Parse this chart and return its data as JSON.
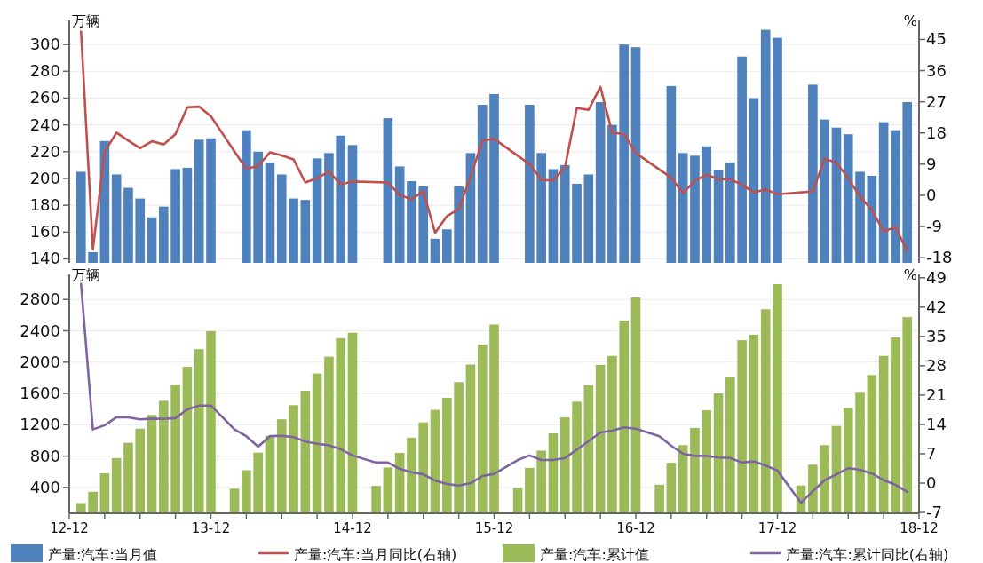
{
  "chart_data": [
    {
      "type": "bar",
      "ylabel": "万辆",
      "y2label": "%",
      "xlim": [
        "2012-12",
        "2018-12"
      ],
      "ylim": [
        137,
        318
      ],
      "yticks": [
        140,
        160,
        180,
        200,
        220,
        240,
        260,
        280,
        300
      ],
      "y2lim": [
        -19.5,
        50.5
      ],
      "y2ticks": [
        -18,
        -9,
        0,
        9,
        18,
        27,
        36,
        45
      ],
      "tick_labels": "y",
      "grid": "y",
      "legend": "bottom",
      "series": [
        {
          "name": "产量:汽车:当月值",
          "color": "#4f81bd",
          "x": [
            "2013-01",
            "2013-02",
            "2013-03",
            "2013-04",
            "2013-05",
            "2013-06",
            "2013-07",
            "2013-08",
            "2013-09",
            "2013-10",
            "2013-11",
            "2013-12",
            "2014-03",
            "2014-04",
            "2014-05",
            "2014-06",
            "2014-07",
            "2014-08",
            "2014-09",
            "2014-10",
            "2014-11",
            "2014-12",
            "2015-03",
            "2015-04",
            "2015-05",
            "2015-06",
            "2015-07",
            "2015-08",
            "2015-09",
            "2015-10",
            "2015-11",
            "2015-12",
            "2016-03",
            "2016-04",
            "2016-05",
            "2016-06",
            "2016-07",
            "2016-08",
            "2016-09",
            "2016-10",
            "2016-11",
            "2016-12",
            "2017-03",
            "2017-04",
            "2017-05",
            "2017-06",
            "2017-07",
            "2017-08",
            "2017-09",
            "2017-10",
            "2017-11",
            "2017-12",
            "2018-03",
            "2018-04",
            "2018-05",
            "2018-06",
            "2018-07",
            "2018-08",
            "2018-09",
            "2018-10",
            "2018-11"
          ],
          "values": [
            205,
            145,
            228,
            203,
            193,
            185,
            171,
            179,
            207,
            208,
            229,
            230,
            236,
            220,
            212,
            203,
            185,
            184,
            215,
            219,
            232,
            225,
            245,
            209,
            198,
            194,
            155,
            162,
            194,
            219,
            255,
            263,
            255,
            219,
            207,
            210,
            196,
            203,
            257,
            240,
            300,
            298,
            269,
            219,
            217,
            224,
            206,
            212,
            291,
            260,
            311,
            305,
            270,
            244,
            238,
            233,
            205,
            202,
            242,
            236,
            257
          ]
        },
        {
          "name": "产量:汽车:当月同比(右轴)",
          "type": "line",
          "axis": "y2",
          "color": "#c0504d",
          "x": [
            "2013-01",
            "2013-02",
            "2013-03",
            "2013-04",
            "2013-05",
            "2013-06",
            "2013-07",
            "2013-08",
            "2013-09",
            "2013-10",
            "2013-11",
            "2013-12",
            "2014-03",
            "2014-04",
            "2014-05",
            "2014-06",
            "2014-07",
            "2014-08",
            "2014-09",
            "2014-10",
            "2014-11",
            "2014-12",
            "2015-03",
            "2015-04",
            "2015-05",
            "2015-06",
            "2015-07",
            "2015-08",
            "2015-09",
            "2015-10",
            "2015-11",
            "2015-12",
            "2016-03",
            "2016-04",
            "2016-05",
            "2016-06",
            "2016-07",
            "2016-08",
            "2016-09",
            "2016-10",
            "2016-11",
            "2016-12",
            "2017-03",
            "2017-04",
            "2017-05",
            "2017-06",
            "2017-07",
            "2017-08",
            "2017-09",
            "2017-10",
            "2017-11",
            "2017-12",
            "2018-03",
            "2018-04",
            "2018-05",
            "2018-06",
            "2018-07",
            "2018-08",
            "2018-09",
            "2018-10",
            "2018-11"
          ],
          "values": [
            47.3,
            -15.6,
            12.6,
            18.1,
            15.8,
            13.6,
            15.6,
            14.7,
            17.7,
            25.4,
            25.6,
            22.8,
            7.6,
            8.5,
            12.4,
            11.5,
            10.4,
            3.7,
            4.9,
            6.9,
            3.1,
            4.0,
            3.7,
            0.1,
            -1.2,
            1.2,
            -10.8,
            -6.0,
            -4.0,
            5.3,
            15.8,
            16.3,
            9.0,
            4.4,
            4.3,
            8.1,
            25.2,
            24.7,
            31.3,
            18.1,
            17.7,
            12.2,
            5.1,
            0.6,
            4.2,
            6.0,
            4.6,
            4.6,
            3.1,
            0.8,
            1.7,
            0.3,
            1.1,
            10.6,
            9.4,
            4.9,
            -0.4,
            -4.2,
            -10.4,
            -9.2,
            -16.1
          ]
        }
      ]
    },
    {
      "type": "bar",
      "ylabel": "万辆",
      "y2label": "%",
      "xlim": [
        "2012-12",
        "2018-12"
      ],
      "xticks": [
        {
          "value": "2012-12",
          "label": "12-12"
        },
        {
          "value": "2013-03",
          "label": null
        },
        {
          "value": "2013-06",
          "label": null
        },
        {
          "value": "2013-09",
          "label": null
        },
        {
          "value": "2013-12",
          "label": "13-12"
        },
        {
          "value": "2014-03",
          "label": null
        },
        {
          "value": "2014-06",
          "label": null
        },
        {
          "value": "2014-09",
          "label": null
        },
        {
          "value": "2014-12",
          "label": "14-12"
        },
        {
          "value": "2015-03",
          "label": null
        },
        {
          "value": "2015-06",
          "label": null
        },
        {
          "value": "2015-09",
          "label": null
        },
        {
          "value": "2015-12",
          "label": "15-12"
        },
        {
          "value": "2016-03",
          "label": null
        },
        {
          "value": "2016-06",
          "label": null
        },
        {
          "value": "2016-09",
          "label": null
        },
        {
          "value": "2016-12",
          "label": "16-12"
        },
        {
          "value": "2017-03",
          "label": null
        },
        {
          "value": "2017-06",
          "label": null
        },
        {
          "value": "2017-09",
          "label": null
        },
        {
          "value": "2017-12",
          "label": "17-12"
        },
        {
          "value": "2018-03",
          "label": null
        },
        {
          "value": "2018-06",
          "label": null
        },
        {
          "value": "2018-09",
          "label": null
        },
        {
          "value": "2018-12",
          "label": "18-12"
        }
      ],
      "ylim": [
        70,
        3120
      ],
      "yticks": [
        400,
        800,
        1200,
        1600,
        2000,
        2400,
        2800
      ],
      "y2lim": [
        -7.2,
        49.8
      ],
      "y2ticks": [
        -7,
        0,
        7,
        14,
        21,
        28,
        35,
        42,
        49
      ],
      "grid": "y",
      "legend": "bottom",
      "series": [
        {
          "name": "产量:汽车:累计值",
          "color": "#9bbb59",
          "x": [
            "2013-01",
            "2013-02",
            "2013-03",
            "2013-04",
            "2013-05",
            "2013-06",
            "2013-07",
            "2013-08",
            "2013-09",
            "2013-10",
            "2013-11",
            "2013-12",
            "2014-02",
            "2014-03",
            "2014-04",
            "2014-05",
            "2014-06",
            "2014-07",
            "2014-08",
            "2014-09",
            "2014-10",
            "2014-11",
            "2014-12",
            "2015-02",
            "2015-03",
            "2015-04",
            "2015-05",
            "2015-06",
            "2015-07",
            "2015-08",
            "2015-09",
            "2015-10",
            "2015-11",
            "2015-12",
            "2016-02",
            "2016-03",
            "2016-04",
            "2016-05",
            "2016-06",
            "2016-07",
            "2016-08",
            "2016-09",
            "2016-10",
            "2016-11",
            "2016-12",
            "2017-02",
            "2017-03",
            "2017-04",
            "2017-05",
            "2017-06",
            "2017-07",
            "2017-08",
            "2017-09",
            "2017-10",
            "2017-11",
            "2017-12",
            "2018-02",
            "2018-03",
            "2018-04",
            "2018-05",
            "2018-06",
            "2018-07",
            "2018-08",
            "2018-09",
            "2018-10",
            "2018-11"
          ],
          "values": [
            200,
            345,
            580,
            775,
            970,
            1150,
            1325,
            1505,
            1710,
            1940,
            2165,
            2395,
            385,
            620,
            845,
            1060,
            1270,
            1450,
            1635,
            1855,
            2070,
            2305,
            2375,
            420,
            655,
            840,
            1035,
            1230,
            1390,
            1545,
            1745,
            1970,
            2225,
            2480,
            395,
            650,
            870,
            1090,
            1295,
            1495,
            1705,
            1965,
            2080,
            2530,
            2825,
            435,
            715,
            940,
            1160,
            1385,
            1600,
            1815,
            2280,
            2350,
            2675,
            2995,
            425,
            690,
            940,
            1185,
            1415,
            1620,
            1835,
            2080,
            2315,
            2575
          ]
        },
        {
          "name": "产量:汽车:累计同比(右轴)",
          "type": "line",
          "axis": "y2",
          "color": "#8064a2",
          "x": [
            "2013-01",
            "2013-02",
            "2013-03",
            "2013-04",
            "2013-05",
            "2013-06",
            "2013-07",
            "2013-08",
            "2013-09",
            "2013-10",
            "2013-11",
            "2013-12",
            "2014-02",
            "2014-03",
            "2014-04",
            "2014-05",
            "2014-06",
            "2014-07",
            "2014-08",
            "2014-09",
            "2014-10",
            "2014-11",
            "2014-12",
            "2015-02",
            "2015-03",
            "2015-04",
            "2015-05",
            "2015-06",
            "2015-07",
            "2015-08",
            "2015-09",
            "2015-10",
            "2015-11",
            "2015-12",
            "2016-02",
            "2016-03",
            "2016-04",
            "2016-05",
            "2016-06",
            "2016-07",
            "2016-08",
            "2016-09",
            "2016-10",
            "2016-11",
            "2016-12",
            "2017-02",
            "2017-03",
            "2017-04",
            "2017-05",
            "2017-06",
            "2017-07",
            "2017-08",
            "2017-09",
            "2017-10",
            "2017-11",
            "2017-12",
            "2018-02",
            "2018-03",
            "2018-04",
            "2018-05",
            "2018-06",
            "2018-07",
            "2018-08",
            "2018-09",
            "2018-10",
            "2018-11"
          ],
          "values": [
            47.5,
            12.8,
            13.8,
            15.7,
            15.7,
            15.2,
            15.4,
            15.3,
            15.5,
            17.6,
            18.5,
            18.5,
            12.8,
            11.2,
            8.7,
            11.2,
            11.3,
            11.0,
            9.9,
            9.4,
            9.0,
            8.1,
            6.6,
            4.9,
            4.9,
            3.4,
            2.6,
            2.1,
            0.6,
            -0.2,
            -0.6,
            0.0,
            1.7,
            2.2,
            5.5,
            6.6,
            5.5,
            5.5,
            6.0,
            8.0,
            10.0,
            12.1,
            12.5,
            13.3,
            13.0,
            11.2,
            8.9,
            7.0,
            6.5,
            6.5,
            6.1,
            6.0,
            4.9,
            5.2,
            4.2,
            3.0,
            -4.7,
            -1.9,
            0.7,
            2.1,
            3.6,
            3.2,
            2.3,
            0.7,
            -0.4,
            -2.1
          ]
        }
      ]
    }
  ]
}
